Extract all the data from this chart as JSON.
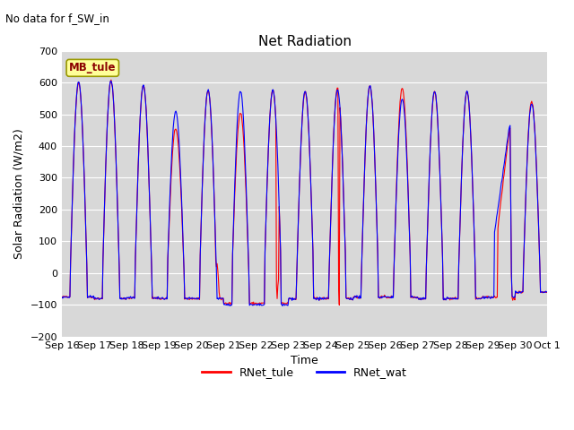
{
  "title": "Net Radiation",
  "subtitle": "No data for f_SW_in",
  "xlabel": "Time",
  "ylabel": "Solar Radiation (W/m2)",
  "ylim": [
    -200,
    700
  ],
  "yticks": [
    -200,
    -100,
    0,
    100,
    200,
    300,
    400,
    500,
    600,
    700
  ],
  "bg_color": "#ffffff",
  "plot_bg_color": "#d8d8d8",
  "grid_color": "#ffffff",
  "legend_label1": "RNet_tule",
  "legend_label2": "RNet_wat",
  "color_tule": "red",
  "color_wat": "blue",
  "legend_box_label": "MB_tule",
  "legend_box_color": "#ffff99",
  "legend_box_edge": "#999900",
  "xtick_labels": [
    "Sep 16",
    "Sep 17",
    "Sep 18",
    "Sep 19",
    "Sep 20",
    "Sep 21",
    "Sep 22",
    "Sep 23",
    "Sep 24",
    "Sep 25",
    "Sep 26",
    "Sep 27",
    "Sep 28",
    "Sep 29",
    "Sep 30",
    "Oct 1"
  ],
  "n_days": 15,
  "n_per_day": 48
}
